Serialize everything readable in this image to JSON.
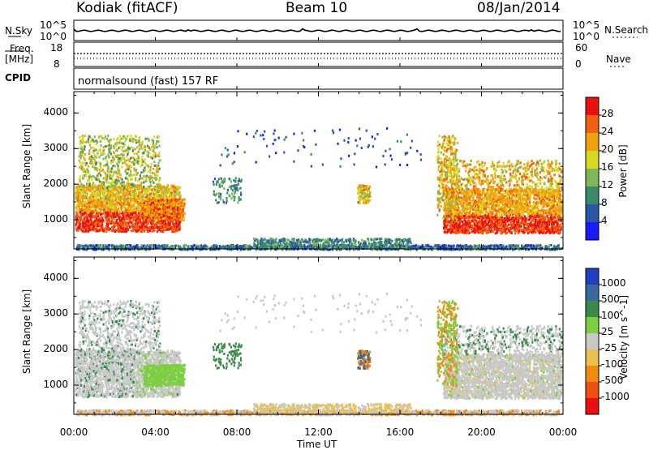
{
  "header": {
    "station": "Kodiak (fitACF)",
    "beam": "Beam 10",
    "date": "08/Jan/2014"
  },
  "top_panels": {
    "nsky_label": "N.Sky",
    "nsky_ticks": [
      "10^5",
      "10^0"
    ],
    "nsearch_label": "N.Search",
    "nsearch_ticks": [
      "10^5",
      "10^0"
    ],
    "freq_label": "Freq.",
    "freq_unit": "[MHz]",
    "freq_ticks": [
      "18",
      "8"
    ],
    "nave_label": "Nave",
    "nave_ticks": [
      "60",
      "0"
    ],
    "cpid_label": "CPID",
    "cpid_text": "normalsound (fast) 157 RF"
  },
  "colors": {
    "power_scale": [
      "#1a1aff",
      "#2a55a8",
      "#3a8a6a",
      "#7fb85a",
      "#d8d820",
      "#f0a010",
      "#f06010",
      "#e81010"
    ],
    "velocity_scale": [
      "#2040c0",
      "#3a68a0",
      "#3a8a4a",
      "#7cd040",
      "#c8c8c8",
      "#e8c050",
      "#f08a10",
      "#f05010",
      "#e81010"
    ],
    "ground_scatter": "#c8c8c8"
  },
  "chart_data": [
    {
      "type": "heatmap",
      "title": "",
      "xlabel": "",
      "ylabel": "Slant Range [km]",
      "xlim": [
        "00:00",
        "00:00"
      ],
      "ylim": [
        180,
        4600
      ],
      "x_ticks": [
        "00:00",
        "04:00",
        "08:00",
        "12:00",
        "16:00",
        "20:00",
        "00:00"
      ],
      "y_ticks": [
        1000,
        2000,
        3000,
        4000
      ],
      "colorbar": {
        "label": "Power [dB]",
        "ticks": [
          4,
          8,
          12,
          16,
          20,
          24,
          28
        ]
      }
    },
    {
      "type": "heatmap",
      "title": "",
      "xlabel": "Time UT",
      "ylabel": "Slant Range [km]",
      "xlim": [
        "00:00",
        "00:00"
      ],
      "ylim": [
        180,
        4600
      ],
      "x_ticks": [
        "00:00",
        "04:00",
        "08:00",
        "12:00",
        "16:00",
        "20:00",
        "00:00"
      ],
      "y_ticks": [
        1000,
        2000,
        3000,
        4000
      ],
      "colorbar": {
        "label": "Velocity [m s^-1]",
        "ticks": [
          1000,
          500,
          100,
          25,
          -25,
          -100,
          -500,
          -1000
        ]
      }
    }
  ]
}
